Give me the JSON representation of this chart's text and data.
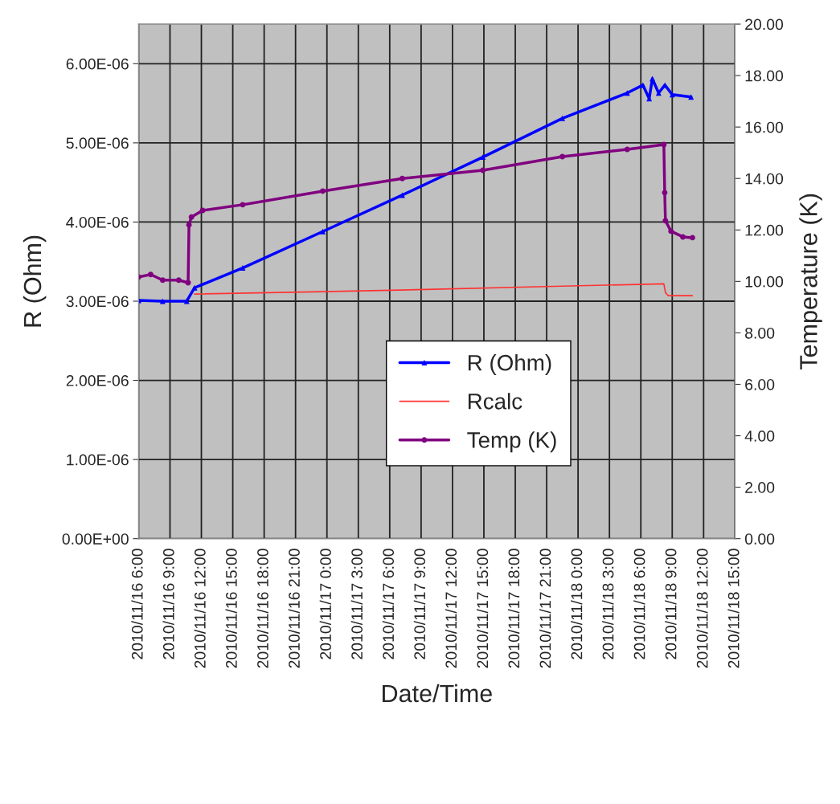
{
  "chart_data": {
    "type": "line",
    "xlabel": "Date/Time",
    "ylabel": "R (Ohm)",
    "y2label": "Temperature (K)",
    "series": [
      {
        "name": "R (Ohm)",
        "color": "#0000ff",
        "marker": "triangle",
        "x": [
          "2010-11-16T06:00",
          "2010-11-16T08:18",
          "2010-11-16T10:36",
          "2010-11-16T11:21",
          "2010-11-16T15:57",
          "2010-11-16T23:36",
          "2010-11-17T07:12",
          "2010-11-17T14:54",
          "2010-11-17T22:30",
          "2010-11-18T04:42",
          "2010-11-18T06:12",
          "2010-11-18T06:48",
          "2010-11-18T07:06",
          "2010-11-18T07:42",
          "2010-11-18T08:18",
          "2010-11-18T09:00",
          "2010-11-18T10:48"
        ],
        "values": [
          3.01e-06,
          3e-06,
          3e-06,
          3.17e-06,
          3.42e-06,
          3.88e-06,
          4.34e-06,
          4.82e-06,
          5.31e-06,
          5.63e-06,
          5.73e-06,
          5.56e-06,
          5.81e-06,
          5.63e-06,
          5.73e-06,
          5.61e-06,
          5.58e-06
        ]
      },
      {
        "name": "Rcalc",
        "color": "#ff3333",
        "marker": "none",
        "x": [
          "2010-11-16T11:21",
          "2010-11-16T23:36",
          "2010-11-17T10:18",
          "2010-11-17T22:30",
          "2010-11-18T08:12",
          "2010-11-18T08:21",
          "2010-11-18T08:36",
          "2010-11-18T10:56"
        ],
        "values": [
          3.09e-06,
          3.12e-06,
          3.15e-06,
          3.19e-06,
          3.22e-06,
          3.11e-06,
          3.07e-06,
          3.07e-06
        ]
      },
      {
        "name": "Temp (K)",
        "color": "#800080",
        "marker": "circle",
        "axis": "y2",
        "x": [
          "2010-11-16T06:00",
          "2010-11-16T07:09",
          "2010-11-16T08:18",
          "2010-11-16T09:50",
          "2010-11-16T10:44",
          "2010-11-16T10:49",
          "2010-11-16T11:03",
          "2010-11-16T12:07",
          "2010-11-16T15:57",
          "2010-11-16T23:36",
          "2010-11-17T07:12",
          "2010-11-17T14:54",
          "2010-11-17T22:30",
          "2010-11-18T04:42",
          "2010-11-18T08:12",
          "2010-11-18T08:17",
          "2010-11-18T08:21",
          "2010-11-18T08:53",
          "2010-11-18T10:01",
          "2010-11-18T10:56"
        ],
        "values": [
          10.17,
          10.27,
          10.05,
          10.05,
          9.95,
          12.2,
          12.5,
          12.76,
          12.98,
          13.51,
          14.0,
          14.32,
          14.85,
          15.13,
          15.32,
          13.45,
          12.36,
          11.95,
          11.73,
          11.7
        ]
      }
    ],
    "xlim": [
      "2010-11-16T06:00",
      "2010-11-18T15:00"
    ],
    "xticks": [
      {
        "value": "2010-11-16T06:00",
        "label": "2010/11/16 6:00"
      },
      {
        "value": "2010-11-16T09:00",
        "label": "2010/11/16 9:00"
      },
      {
        "value": "2010-11-16T12:00",
        "label": "2010/11/16 12:00"
      },
      {
        "value": "2010-11-16T15:00",
        "label": "2010/11/16 15:00"
      },
      {
        "value": "2010-11-16T18:00",
        "label": "2010/11/16 18:00"
      },
      {
        "value": "2010-11-16T21:00",
        "label": "2010/11/16 21:00"
      },
      {
        "value": "2010-11-17T00:00",
        "label": "2010/11/17 0:00"
      },
      {
        "value": "2010-11-17T03:00",
        "label": "2010/11/17 3:00"
      },
      {
        "value": "2010-11-17T06:00",
        "label": "2010/11/17 6:00"
      },
      {
        "value": "2010-11-17T09:00",
        "label": "2010/11/17 9:00"
      },
      {
        "value": "2010-11-17T12:00",
        "label": "2010/11/17 12:00"
      },
      {
        "value": "2010-11-17T15:00",
        "label": "2010/11/17 15:00"
      },
      {
        "value": "2010-11-17T18:00",
        "label": "2010/11/17 18:00"
      },
      {
        "value": "2010-11-17T21:00",
        "label": "2010/11/17 21:00"
      },
      {
        "value": "2010-11-18T00:00",
        "label": "2010/11/18 0:00"
      },
      {
        "value": "2010-11-18T03:00",
        "label": "2010/11/18 3:00"
      },
      {
        "value": "2010-11-18T06:00",
        "label": "2010/11/18 6:00"
      },
      {
        "value": "2010-11-18T09:00",
        "label": "2010/11/18 9:00"
      },
      {
        "value": "2010-11-18T12:00",
        "label": "2010/11/18 12:00"
      },
      {
        "value": "2010-11-18T15:00",
        "label": "2010/11/18 15:00"
      }
    ],
    "ylim": [
      0,
      6.5e-06
    ],
    "yticks": [
      {
        "value": 0,
        "label": "0.00E+00"
      },
      {
        "value": 1e-06,
        "label": "1.00E-06"
      },
      {
        "value": 2e-06,
        "label": "2.00E-06"
      },
      {
        "value": 3e-06,
        "label": "3.00E-06"
      },
      {
        "value": 4e-06,
        "label": "4.00E-06"
      },
      {
        "value": 5e-06,
        "label": "5.00E-06"
      },
      {
        "value": 6e-06,
        "label": "6.00E-06"
      }
    ],
    "y2lim": [
      0,
      20
    ],
    "y2ticks": [
      {
        "value": 0,
        "label": "0.00"
      },
      {
        "value": 2,
        "label": "2.00"
      },
      {
        "value": 4,
        "label": "4.00"
      },
      {
        "value": 6,
        "label": "6.00"
      },
      {
        "value": 8,
        "label": "8.00"
      },
      {
        "value": 10,
        "label": "10.00"
      },
      {
        "value": 12,
        "label": "12.00"
      },
      {
        "value": 14,
        "label": "14.00"
      },
      {
        "value": 16,
        "label": "16.00"
      },
      {
        "value": 18,
        "label": "18.00"
      },
      {
        "value": 20,
        "label": "20.00"
      }
    ],
    "grid": true,
    "legend": "bottom",
    "line_style": "solid"
  }
}
